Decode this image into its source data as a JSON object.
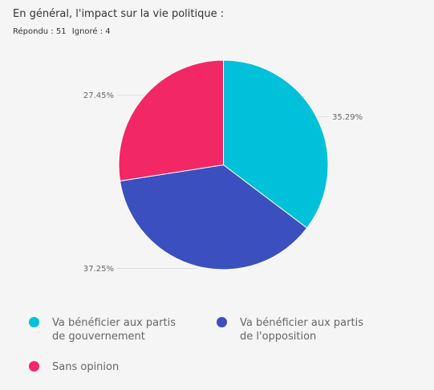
{
  "header": {
    "title": "En général, l'impact sur la vie politique :",
    "answered": "Répondu : 51",
    "skipped": "Ignoré : 4"
  },
  "chart_data": {
    "type": "pie",
    "slices": [
      {
        "name": "Va bénéficier aux partis de gouvernement",
        "legend_lines": [
          "Va bénéficier aux partis",
          "de gouvernement"
        ],
        "value": 35.29,
        "label": "35.29%",
        "color": "#00c1d9"
      },
      {
        "name": "Va bénéficier aux partis de l'opposition",
        "legend_lines": [
          "Va bénéficier aux partis",
          "de l'opposition"
        ],
        "value": 37.25,
        "label": "37.25%",
        "color": "#3b4fbf"
      },
      {
        "name": "Sans opinion",
        "legend_lines": [
          "Sans opinion"
        ],
        "value": 27.45,
        "label": "27.45%",
        "color": "#f22766"
      }
    ],
    "start": "top",
    "direction": "clockwise",
    "legend_position": "bottom"
  }
}
